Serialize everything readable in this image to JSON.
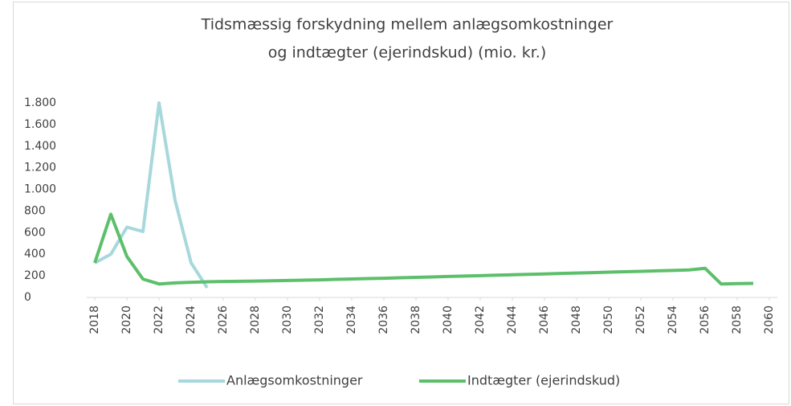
{
  "chart_data": {
    "type": "line",
    "title": [
      "Tidsmæssig forskydning mellem anlægsomkostninger",
      "og indtægter (ejerindskud) (mio. kr.)"
    ],
    "x": [
      2018,
      2019,
      2020,
      2021,
      2022,
      2023,
      2024,
      2025,
      2026,
      2027,
      2028,
      2029,
      2030,
      2031,
      2032,
      2033,
      2034,
      2035,
      2036,
      2037,
      2038,
      2039,
      2040,
      2041,
      2042,
      2043,
      2044,
      2045,
      2046,
      2047,
      2048,
      2049,
      2050,
      2051,
      2052,
      2053,
      2054,
      2055,
      2056,
      2057,
      2058,
      2059
    ],
    "series": [
      {
        "name": "Anlægsomkostninger",
        "color": "#a6d8dc",
        "values": [
          320,
          400,
          650,
          610,
          1800,
          900,
          320,
          90,
          null,
          null,
          null,
          null,
          null,
          null,
          null,
          null,
          null,
          null,
          null,
          null,
          null,
          null,
          null,
          null,
          null,
          null,
          null,
          null,
          null,
          null,
          null,
          null,
          null,
          null,
          null,
          null,
          null,
          null,
          null,
          null,
          null,
          null
        ]
      },
      {
        "name": "Indtægter (ejerindskud)",
        "color": "#5cbf6a",
        "values": [
          320,
          770,
          380,
          170,
          125,
          135,
          140,
          145,
          148,
          150,
          152,
          154,
          157,
          160,
          163,
          167,
          171,
          175,
          178,
          182,
          186,
          190,
          194,
          198,
          202,
          206,
          210,
          214,
          218,
          222,
          226,
          230,
          234,
          238,
          242,
          246,
          250,
          255,
          270,
          125,
          128,
          130
        ]
      }
    ],
    "xlim": [
      2017.5,
      2060.5
    ],
    "xticks": [
      2018,
      2020,
      2022,
      2024,
      2026,
      2028,
      2030,
      2032,
      2034,
      2036,
      2038,
      2040,
      2042,
      2044,
      2046,
      2048,
      2050,
      2052,
      2054,
      2056,
      2058,
      2060
    ],
    "ylim": [
      0,
      1800
    ],
    "yticks": [
      0,
      200,
      400,
      600,
      800,
      {
        "value": 1000,
        "label": "1.000"
      },
      {
        "value": 1200,
        "label": "1.200"
      },
      {
        "value": 1400,
        "label": "1.400"
      },
      {
        "value": 1600,
        "label": "1.600"
      },
      {
        "value": 1800,
        "label": "1.800"
      }
    ],
    "grid": false,
    "legend": "bottom"
  }
}
